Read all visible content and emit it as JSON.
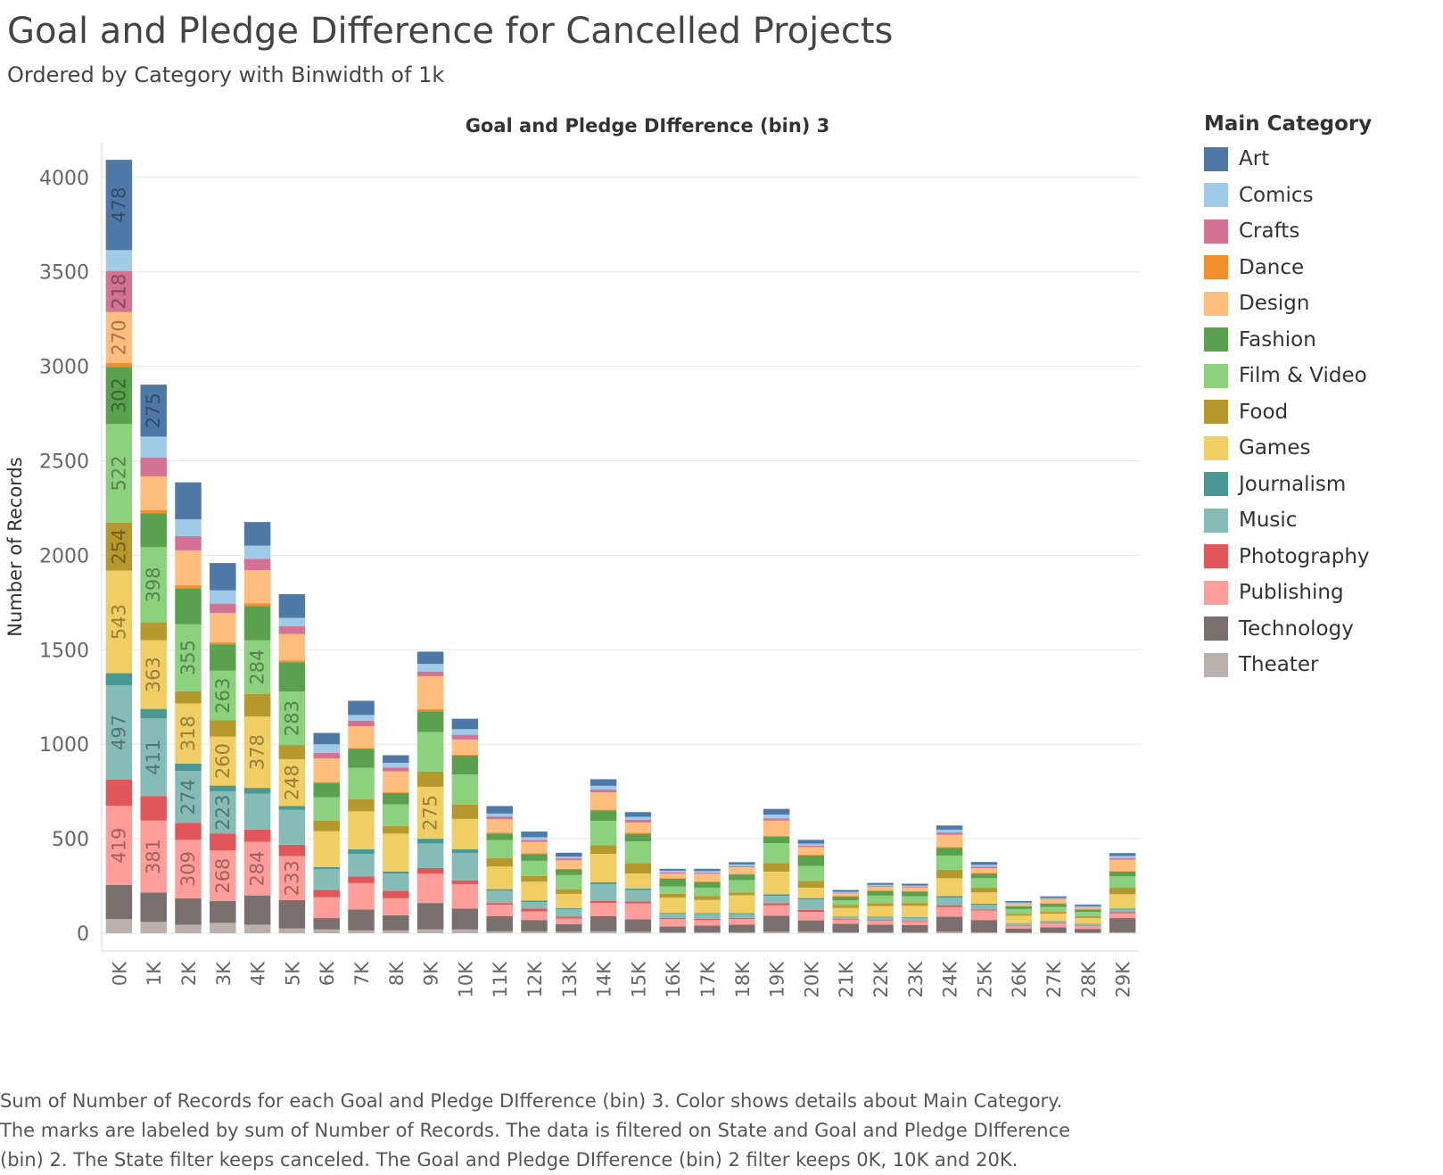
{
  "page": {
    "title": "Goal and Pledge Difference for Cancelled Projects",
    "subtitle": "Ordered by Category with Binwidth of 1k",
    "caption_lines": [
      "Sum of Number of Records for each Goal and Pledge DIfference (bin) 3.  Color shows details about Main Category.",
      "The marks are labeled by sum of Number of Records. The data is filtered on State and Goal and Pledge DIfference",
      "(bin) 2. The State filter keeps canceled. The Goal and Pledge DIfference (bin) 2 filter keeps 0K, 10K and 20K."
    ]
  },
  "legend": {
    "title": "Main Category",
    "items": [
      {
        "label": "Art",
        "color": "#4e79a7"
      },
      {
        "label": "Comics",
        "color": "#a0cbe8"
      },
      {
        "label": "Crafts",
        "color": "#d37295"
      },
      {
        "label": "Dance",
        "color": "#f28e2b"
      },
      {
        "label": "Design",
        "color": "#ffbe7d"
      },
      {
        "label": "Fashion",
        "color": "#59a14f"
      },
      {
        "label": "Film & Video",
        "color": "#8cd17d"
      },
      {
        "label": "Food",
        "color": "#b6992d"
      },
      {
        "label": "Games",
        "color": "#f1ce63"
      },
      {
        "label": "Journalism",
        "color": "#499894"
      },
      {
        "label": "Music",
        "color": "#86bcb6"
      },
      {
        "label": "Photography",
        "color": "#e15759"
      },
      {
        "label": "Publishing",
        "color": "#ff9d9a"
      },
      {
        "label": "Technology",
        "color": "#79706e"
      },
      {
        "label": "Theater",
        "color": "#bab0ac"
      }
    ]
  },
  "chart_data": {
    "type": "bar",
    "stacked": true,
    "title": "Goal and Pledge DIfference (bin) 3",
    "xlabel": "",
    "ylabel": "Number of Records",
    "ylim": [
      0,
      4200
    ],
    "yticks": [
      0,
      500,
      1000,
      1500,
      2000,
      2500,
      3000,
      3500,
      4000
    ],
    "grid": true,
    "legend_position": "right",
    "categories": [
      "0K",
      "1K",
      "2K",
      "3K",
      "4K",
      "5K",
      "6K",
      "7K",
      "8K",
      "9K",
      "10K",
      "11K",
      "12K",
      "13K",
      "14K",
      "15K",
      "16K",
      "17K",
      "18K",
      "19K",
      "20K",
      "21K",
      "22K",
      "23K",
      "24K",
      "25K",
      "26K",
      "27K",
      "28K",
      "29K"
    ],
    "series": [
      {
        "name": "Theater",
        "values": [
          75,
          60,
          45,
          55,
          45,
          25,
          20,
          15,
          15,
          20,
          20,
          10,
          10,
          8,
          10,
          8,
          5,
          5,
          5,
          8,
          8,
          5,
          5,
          5,
          8,
          5,
          3,
          3,
          3,
          5
        ]
      },
      {
        "name": "Technology",
        "values": [
          180,
          155,
          140,
          115,
          155,
          150,
          60,
          110,
          80,
          140,
          110,
          80,
          60,
          40,
          80,
          65,
          30,
          35,
          40,
          85,
          60,
          45,
          40,
          38,
          80,
          65,
          22,
          28,
          20,
          75
        ]
      },
      {
        "name": "Publishing",
        "values": [
          419,
          381,
          309,
          268,
          284,
          233,
          110,
          140,
          90,
          155,
          130,
          60,
          45,
          30,
          70,
          85,
          40,
          30,
          30,
          55,
          45,
          22,
          22,
          20,
          50,
          50,
          15,
          20,
          15,
          25
        ]
      },
      {
        "name": "Photography",
        "values": [
          140,
          130,
          90,
          90,
          65,
          60,
          40,
          35,
          40,
          30,
          20,
          10,
          15,
          10,
          10,
          10,
          6,
          6,
          6,
          10,
          10,
          4,
          4,
          4,
          10,
          6,
          3,
          3,
          3,
          6
        ]
      },
      {
        "name": "Music",
        "values": [
          497,
          411,
          274,
          223,
          190,
          185,
          110,
          120,
          90,
          130,
          145,
          65,
          35,
          40,
          90,
          60,
          22,
          25,
          20,
          40,
          55,
          10,
          15,
          15,
          40,
          25,
          8,
          8,
          8,
          15
        ]
      },
      {
        "name": "Journalism",
        "values": [
          65,
          50,
          40,
          30,
          30,
          20,
          10,
          25,
          12,
          25,
          20,
          8,
          8,
          5,
          10,
          8,
          5,
          5,
          5,
          8,
          8,
          3,
          3,
          3,
          8,
          5,
          2,
          2,
          2,
          5
        ]
      },
      {
        "name": "Games",
        "values": [
          543,
          363,
          318,
          260,
          378,
          248,
          190,
          200,
          200,
          275,
          160,
          120,
          100,
          75,
          150,
          80,
          80,
          70,
          95,
          120,
          55,
          45,
          55,
          60,
          95,
          60,
          40,
          40,
          30,
          75
        ]
      },
      {
        "name": "Food",
        "values": [
          254,
          95,
          65,
          85,
          120,
          75,
          55,
          65,
          40,
          80,
          75,
          45,
          30,
          25,
          45,
          55,
          20,
          20,
          15,
          45,
          35,
          15,
          15,
          15,
          45,
          25,
          10,
          10,
          10,
          35
        ]
      },
      {
        "name": "Film & Video",
        "values": [
          522,
          398,
          355,
          263,
          284,
          283,
          125,
          165,
          115,
          210,
          160,
          95,
          80,
          75,
          130,
          115,
          40,
          45,
          65,
          105,
          80,
          25,
          40,
          35,
          75,
          50,
          25,
          25,
          22,
          60
        ]
      },
      {
        "name": "Fashion",
        "values": [
          302,
          180,
          190,
          140,
          180,
          155,
          75,
          100,
          60,
          110,
          100,
          35,
          35,
          30,
          55,
          40,
          40,
          30,
          30,
          35,
          55,
          20,
          25,
          25,
          40,
          25,
          15,
          18,
          12,
          25
        ]
      },
      {
        "name": "Dance",
        "values": [
          20,
          15,
          15,
          10,
          15,
          10,
          5,
          5,
          5,
          10,
          5,
          5,
          5,
          3,
          5,
          5,
          3,
          3,
          3,
          5,
          5,
          2,
          2,
          2,
          5,
          3,
          2,
          2,
          2,
          3
        ]
      },
      {
        "name": "Design",
        "values": [
          270,
          180,
          185,
          155,
          175,
          140,
          125,
          115,
          110,
          175,
          80,
          70,
          60,
          45,
          90,
          55,
          25,
          40,
          35,
          80,
          40,
          15,
          20,
          20,
          65,
          25,
          10,
          20,
          10,
          60
        ]
      },
      {
        "name": "Crafts",
        "values": [
          218,
          100,
          75,
          50,
          60,
          40,
          30,
          30,
          20,
          25,
          25,
          15,
          10,
          10,
          15,
          15,
          5,
          5,
          5,
          12,
          8,
          3,
          5,
          5,
          12,
          8,
          2,
          3,
          2,
          8
        ]
      },
      {
        "name": "Comics",
        "values": [
          110,
          110,
          90,
          70,
          70,
          45,
          45,
          30,
          25,
          40,
          30,
          15,
          15,
          10,
          20,
          15,
          10,
          10,
          10,
          20,
          10,
          5,
          5,
          5,
          15,
          10,
          5,
          5,
          5,
          12
        ]
      },
      {
        "name": "Art",
        "values": [
          478,
          275,
          195,
          145,
          125,
          125,
          60,
          75,
          40,
          65,
          55,
          40,
          30,
          20,
          35,
          25,
          10,
          12,
          12,
          30,
          20,
          10,
          10,
          10,
          22,
          15,
          8,
          8,
          8,
          15
        ]
      }
    ],
    "data_labels": {
      "0K": {
        "Theater": null,
        "Technology": null,
        "Publishing": 419,
        "Photography": null,
        "Music": 497,
        "Journalism": null,
        "Games": 543,
        "Food": 254,
        "Film & Video": 522,
        "Fashion": 302,
        "Dance": null,
        "Design": 270,
        "Crafts": 218,
        "Comics": null,
        "Art": 478
      },
      "1K": {
        "Publishing": 381,
        "Music": 411,
        "Games": 363,
        "Film & Video": 398,
        "Art": 275
      },
      "2K": {
        "Publishing": 309,
        "Music": 274,
        "Games": 318,
        "Film & Video": 355
      },
      "3K": {
        "Publishing": 268,
        "Music": 223,
        "Games": 260,
        "Film & Video": 263
      },
      "4K": {
        "Publishing": 284,
        "Games": 378,
        "Film & Video": 284
      },
      "5K": {
        "Publishing": 233,
        "Games": 248,
        "Film & Video": 283
      },
      "9K": {
        "Games": 275
      }
    }
  }
}
